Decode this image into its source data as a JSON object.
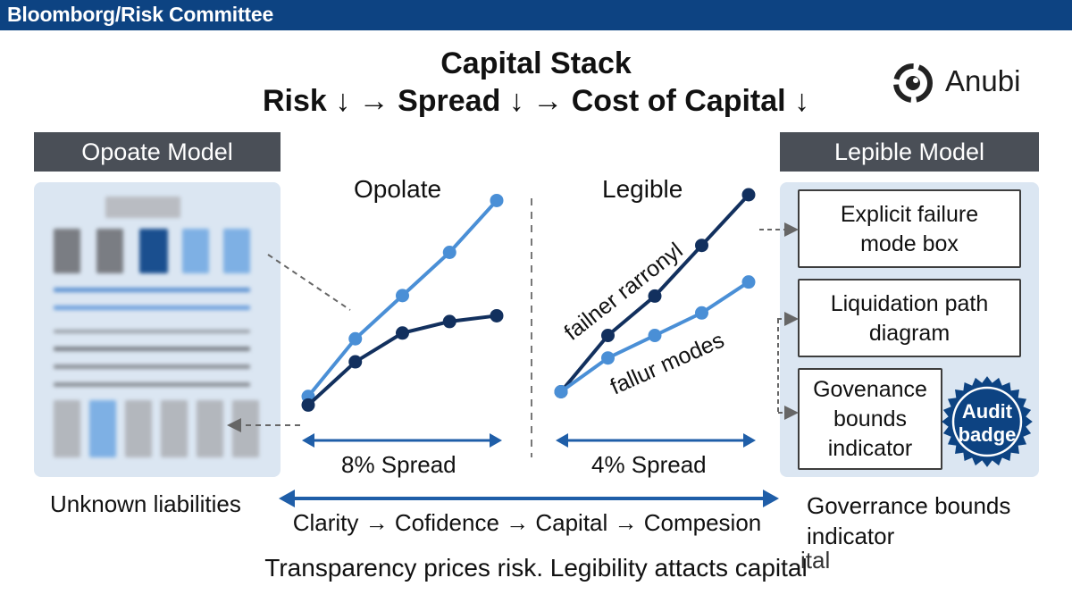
{
  "header": {
    "title": "Bloomborg/Risk Committee"
  },
  "headline": {
    "title": "Capital Stack",
    "subtitle": "Risk ↓ → Spread ↓ → Cost of Capital ↓"
  },
  "logo": {
    "text": "Anubi",
    "icon": "target-ring-icon"
  },
  "left_panel": {
    "header": "Opoate Model",
    "caption": "Unknown liabilities"
  },
  "right_panel": {
    "header": "Lepible Model",
    "boxes": [
      [
        "Explicit failure",
        "mode box"
      ],
      [
        "Liquidation path",
        "diagram"
      ],
      [
        "Govenance",
        "bounds",
        "indicator"
      ]
    ],
    "badge": [
      "Audit",
      "badge"
    ],
    "caption": [
      "Goverrance bounds",
      "indicator"
    ]
  },
  "charts": {
    "left_title": "Opolate",
    "right_title": "Legible",
    "left_spread": "8% Spread",
    "right_spread": "4% Spread",
    "right_annotations": [
      "failner rarronyl",
      "fallur modes"
    ]
  },
  "flow": "Clarity → Cofidence → Capital → Compesion",
  "tagline": "Transparency prices risk. Legibility attacts capital",
  "tagline_fragment": "ital",
  "colors": {
    "navy": "#0d4382",
    "dark_line": "#12305e",
    "light_line": "#4a8fd6",
    "header_gray": "#4a4f57",
    "panel_bg": "#dbe6f2"
  },
  "chart_data": [
    {
      "type": "line",
      "title": "Opolate",
      "x": [
        0,
        1,
        2,
        3,
        4
      ],
      "series": [
        {
          "values": [
            1.0,
            3.0,
            4.5,
            6.0,
            7.8
          ]
        },
        {
          "values": [
            0.7,
            2.2,
            3.2,
            3.6,
            3.8
          ]
        }
      ]
    },
    {
      "type": "line",
      "title": "Legible",
      "x": [
        0,
        1,
        2,
        3,
        4
      ],
      "series": [
        {
          "values": [
            1.0,
            3.0,
            4.4,
            6.2,
            8.0
          ]
        },
        {
          "values": [
            1.0,
            2.2,
            3.0,
            3.8,
            4.9
          ]
        }
      ]
    }
  ]
}
